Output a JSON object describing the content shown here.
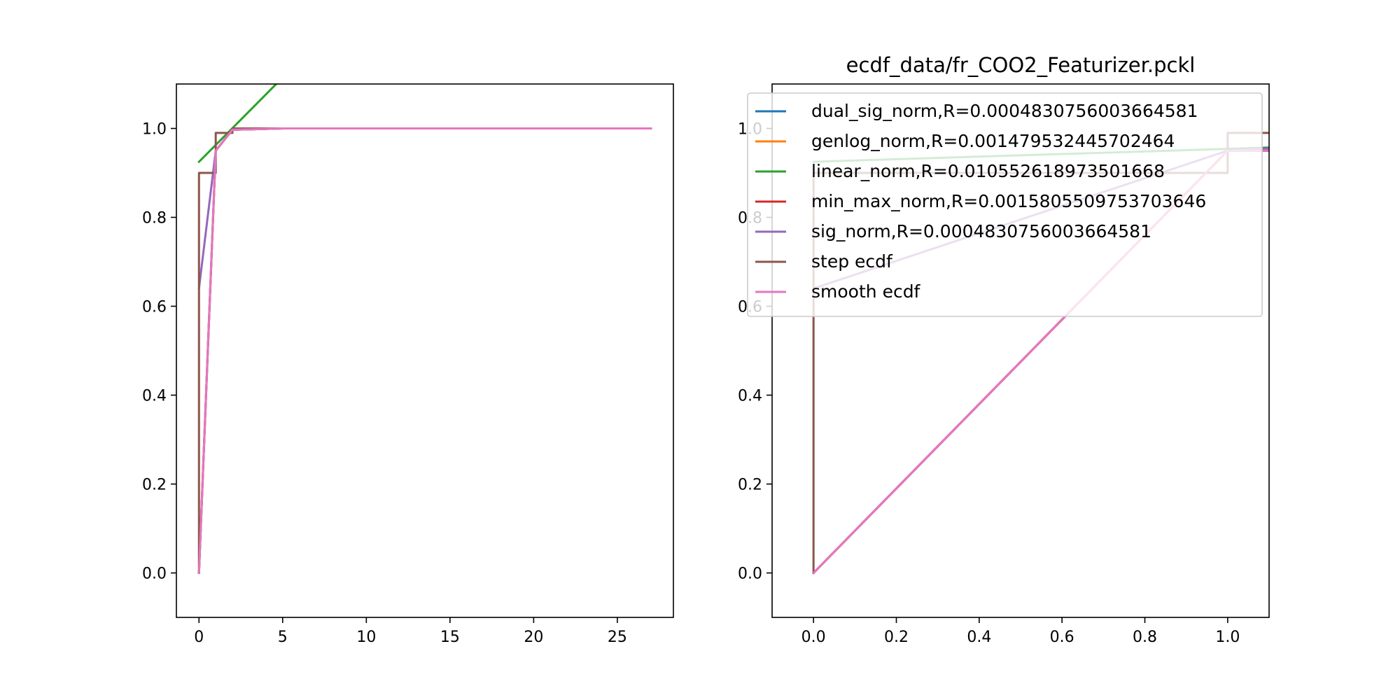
{
  "chart_data": [
    {
      "type": "line",
      "title": "",
      "xlabel": "",
      "ylabel": "",
      "xlim": [
        -1.35,
        28.35
      ],
      "ylim": [
        -0.1,
        1.1
      ],
      "xticks": [
        0,
        5,
        10,
        15,
        20,
        25
      ],
      "xtick_labels": [
        "0",
        "5",
        "10",
        "15",
        "20",
        "25"
      ],
      "yticks": [
        0.0,
        0.2,
        0.4,
        0.6,
        0.8,
        1.0
      ],
      "ytick_labels": [
        "0.0",
        "0.2",
        "0.4",
        "0.6",
        "0.8",
        "1.0"
      ],
      "grid": false,
      "series": [
        {
          "color": "#1f77b4",
          "points": [
            [
              0,
              0.0
            ],
            [
              1,
              0.95
            ],
            [
              2,
              0.997
            ],
            [
              5,
              1.0
            ],
            [
              27,
              1.0
            ]
          ]
        },
        {
          "color": "#ff7f0e",
          "points": [
            [
              0,
              0.0
            ],
            [
              1,
              0.95
            ],
            [
              2,
              0.997
            ],
            [
              5,
              1.0
            ],
            [
              27,
              1.0
            ]
          ]
        },
        {
          "color": "#2ca02c",
          "points": [
            [
              0,
              0.925
            ],
            [
              28.35,
              2.0
            ]
          ]
        },
        {
          "color": "#d62728",
          "points": [
            [
              0,
              0.0
            ],
            [
              1,
              0.95
            ],
            [
              2,
              0.997
            ],
            [
              5,
              1.0
            ],
            [
              27,
              1.0
            ]
          ]
        },
        {
          "color": "#9467bd",
          "points": [
            [
              0,
              0.64
            ],
            [
              1,
              0.95
            ],
            [
              2,
              0.998
            ],
            [
              5,
              1.0
            ],
            [
              27,
              1.0
            ]
          ]
        },
        {
          "color": "#8c564b",
          "points": [
            [
              0,
              0.0
            ],
            [
              0,
              0.9
            ],
            [
              1,
              0.9
            ],
            [
              1,
              0.99
            ],
            [
              2,
              0.99
            ],
            [
              2,
              1.0
            ],
            [
              27,
              1.0
            ]
          ]
        },
        {
          "color": "#e377c2",
          "points": [
            [
              0,
              0.0
            ],
            [
              1,
              0.95
            ],
            [
              2,
              0.997
            ],
            [
              5,
              1.0
            ],
            [
              27,
              1.0
            ]
          ]
        }
      ]
    },
    {
      "type": "line",
      "title": "ecdf_data/fr_COO2_Featurizer.pckl",
      "xlabel": "",
      "ylabel": "",
      "xlim": [
        -0.1,
        1.1
      ],
      "ylim": [
        -0.1,
        1.1
      ],
      "xticks": [
        0.0,
        0.2,
        0.4,
        0.6,
        0.8,
        1.0
      ],
      "xtick_labels": [
        "0.0",
        "0.2",
        "0.4",
        "0.6",
        "0.8",
        "1.0"
      ],
      "yticks": [
        0.0,
        0.2,
        0.4,
        0.6,
        0.8,
        1.0
      ],
      "ytick_labels": [
        "0.0",
        "0.2",
        "0.4",
        "0.6",
        "0.8",
        "1.0"
      ],
      "grid": false,
      "legend_position": "top-right",
      "series": [
        {
          "name": "dual_sig_norm,R=0.0004830756003664581",
          "color": "#1f77b4",
          "points": [
            [
              0,
              0.0
            ],
            [
              1,
              0.95
            ],
            [
              1.1,
              0.95
            ]
          ]
        },
        {
          "name": "genlog_norm,R=0.001479532445702464",
          "color": "#ff7f0e",
          "points": [
            [
              0,
              0.0
            ],
            [
              1,
              0.95
            ],
            [
              1.1,
              0.95
            ]
          ]
        },
        {
          "name": "linear_norm,R=0.010552618973501668",
          "color": "#2ca02c",
          "points": [
            [
              0,
              0.925
            ],
            [
              1.1,
              0.957
            ]
          ]
        },
        {
          "name": "min_max_norm,R=0.0015805509753703646",
          "color": "#d62728",
          "points": [
            [
              0,
              0.0
            ],
            [
              1,
              0.95
            ],
            [
              1.1,
              0.95
            ]
          ]
        },
        {
          "name": "sig_norm,R=0.0004830756003664581",
          "color": "#9467bd",
          "points": [
            [
              0,
              0.64
            ],
            [
              1,
              0.95
            ],
            [
              1.1,
              0.955
            ]
          ]
        },
        {
          "name": "step ecdf",
          "color": "#8c564b",
          "points": [
            [
              0,
              0.0
            ],
            [
              0,
              0.9
            ],
            [
              1,
              0.9
            ],
            [
              1,
              0.99
            ],
            [
              1.1,
              0.99
            ]
          ]
        },
        {
          "name": "smooth ecdf",
          "color": "#e377c2",
          "points": [
            [
              0,
              0.0
            ],
            [
              1,
              0.95
            ],
            [
              1.1,
              0.95
            ]
          ]
        }
      ]
    }
  ]
}
